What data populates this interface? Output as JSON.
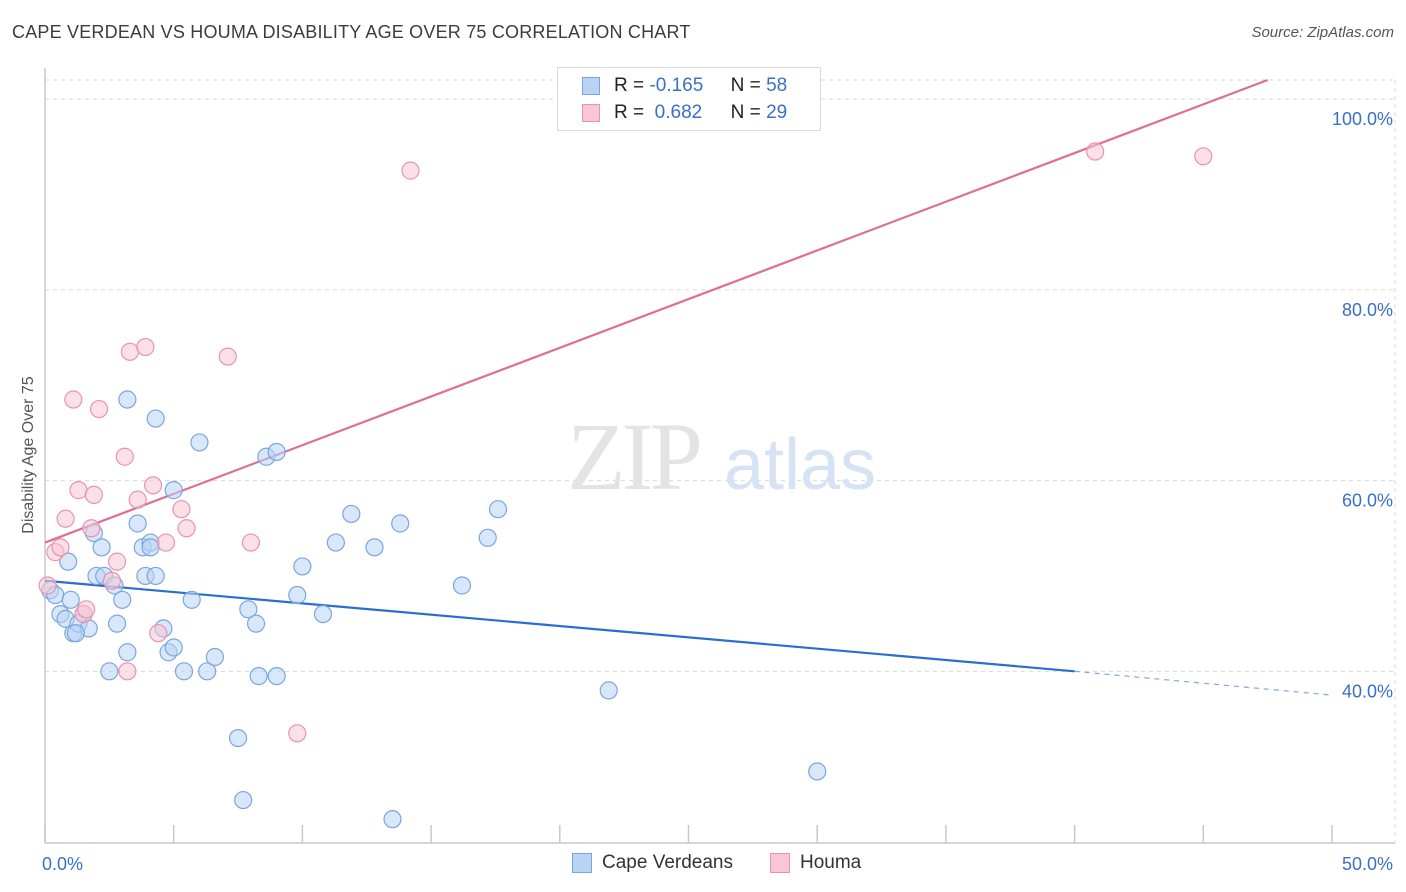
{
  "title": "CAPE VERDEAN VS HOUMA DISABILITY AGE OVER 75 CORRELATION CHART",
  "source": "Source: ZipAtlas.com",
  "watermark": {
    "zip": "ZIP",
    "atlas": "atlas"
  },
  "legend_top": {
    "rows": [
      {
        "r_label": "R =",
        "r_value": "-0.165",
        "n_label": "N =",
        "n_value": "58"
      },
      {
        "r_label": "R =",
        "r_value": " 0.682",
        "n_label": "N =",
        "n_value": "29"
      }
    ]
  },
  "legend_bottom": {
    "series1": "Cape Verdeans",
    "series2": "Houma"
  },
  "colors": {
    "blue_fill": "#b9d3f5",
    "blue_stroke": "#7aa6e0",
    "blue_line": "#2a6ed1",
    "pink_fill": "#f8c6d6",
    "pink_stroke": "#e993b0",
    "pink_line": "#e06d96",
    "tick_text": "#3a6fc9",
    "grid": "#d9d9d9"
  },
  "chart_data": {
    "type": "scatter",
    "title": "CAPE VERDEAN VS HOUMA DISABILITY AGE OVER 75 CORRELATION CHART",
    "xlabel": "",
    "ylabel": "Disability Age Over 75",
    "xlim": [
      0,
      50
    ],
    "ylim": [
      22,
      102
    ],
    "x_ticks": [
      {
        "value": 0,
        "label": "0.0%"
      },
      {
        "value": 50,
        "label": "50.0%"
      }
    ],
    "y_ticks": [
      {
        "value": 40,
        "label": "40.0%"
      },
      {
        "value": 60,
        "label": "60.0%"
      },
      {
        "value": 80,
        "label": "80.0%"
      },
      {
        "value": 100,
        "label": "100.0%"
      }
    ],
    "series": [
      {
        "name": "Cape Verdeans",
        "R": -0.165,
        "N": 58,
        "trend": {
          "x1": 0,
          "y1": 49.5,
          "x2": 40,
          "y2": 40.0,
          "x2_dashed": 50,
          "y2_dashed": 37.5
        },
        "points": [
          [
            0.2,
            48.5
          ],
          [
            0.4,
            48.0
          ],
          [
            0.6,
            46.0
          ],
          [
            0.8,
            45.5
          ],
          [
            0.9,
            51.5
          ],
          [
            1.0,
            47.5
          ],
          [
            1.1,
            44.0
          ],
          [
            1.3,
            45.0
          ],
          [
            1.5,
            46.0
          ],
          [
            1.7,
            44.5
          ],
          [
            1.9,
            54.5
          ],
          [
            2.0,
            50.0
          ],
          [
            2.2,
            53.0
          ],
          [
            2.3,
            50.0
          ],
          [
            2.5,
            40.0
          ],
          [
            2.7,
            49.0
          ],
          [
            2.8,
            45.0
          ],
          [
            3.0,
            47.5
          ],
          [
            3.2,
            42.0
          ],
          [
            3.2,
            68.5
          ],
          [
            3.6,
            55.5
          ],
          [
            3.8,
            53.0
          ],
          [
            3.9,
            50.0
          ],
          [
            4.1,
            53.5
          ],
          [
            4.3,
            50.0
          ],
          [
            4.3,
            66.5
          ],
          [
            4.6,
            44.5
          ],
          [
            4.8,
            42.0
          ],
          [
            5.0,
            42.5
          ],
          [
            5.0,
            59.0
          ],
          [
            5.4,
            40.0
          ],
          [
            5.7,
            47.5
          ],
          [
            6.0,
            64.0
          ],
          [
            6.3,
            40.0
          ],
          [
            6.6,
            41.5
          ],
          [
            7.5,
            33.0
          ],
          [
            7.7,
            26.5
          ],
          [
            7.9,
            46.5
          ],
          [
            8.2,
            45.0
          ],
          [
            8.3,
            39.5
          ],
          [
            8.6,
            62.5
          ],
          [
            9.0,
            63.0
          ],
          [
            9.0,
            39.5
          ],
          [
            9.8,
            48.0
          ],
          [
            10.0,
            51.0
          ],
          [
            10.8,
            46.0
          ],
          [
            11.3,
            53.5
          ],
          [
            11.9,
            56.5
          ],
          [
            12.8,
            53.0
          ],
          [
            13.5,
            24.5
          ],
          [
            13.8,
            55.5
          ],
          [
            16.2,
            49.0
          ],
          [
            17.2,
            54.0
          ],
          [
            17.6,
            57.0
          ],
          [
            21.9,
            38.0
          ],
          [
            30.0,
            29.5
          ],
          [
            1.2,
            44.0
          ],
          [
            4.1,
            53.0
          ]
        ]
      },
      {
        "name": "Houma",
        "R": 0.682,
        "N": 29,
        "trend": {
          "x1": 0,
          "y1": 53.5,
          "x2": 47.5,
          "y2": 102.0
        },
        "points": [
          [
            0.1,
            49.0
          ],
          [
            0.4,
            52.5
          ],
          [
            0.6,
            53.0
          ],
          [
            0.8,
            56.0
          ],
          [
            1.1,
            68.5
          ],
          [
            1.3,
            59.0
          ],
          [
            1.5,
            46.0
          ],
          [
            1.8,
            55.0
          ],
          [
            1.9,
            58.5
          ],
          [
            2.1,
            67.5
          ],
          [
            2.6,
            49.5
          ],
          [
            2.8,
            51.5
          ],
          [
            3.1,
            62.5
          ],
          [
            3.2,
            40.0
          ],
          [
            3.3,
            73.5
          ],
          [
            3.6,
            58.0
          ],
          [
            3.9,
            74.0
          ],
          [
            4.2,
            59.5
          ],
          [
            4.4,
            44.0
          ],
          [
            4.7,
            53.5
          ],
          [
            5.3,
            57.0
          ],
          [
            5.5,
            55.0
          ],
          [
            7.1,
            73.0
          ],
          [
            8.0,
            53.5
          ],
          [
            9.8,
            33.5
          ],
          [
            14.2,
            92.5
          ],
          [
            40.8,
            94.5
          ],
          [
            45.0,
            94.0
          ],
          [
            1.6,
            46.5
          ]
        ]
      }
    ]
  }
}
